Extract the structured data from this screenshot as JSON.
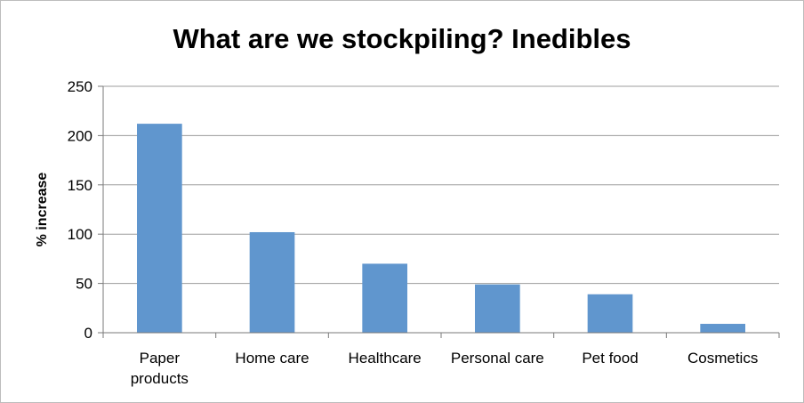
{
  "chart_data": {
    "type": "bar",
    "title": "What are we stockpiling? Inedibles",
    "xlabel": "",
    "ylabel": "% increase",
    "categories": [
      [
        "Paper",
        "products"
      ],
      [
        "Home care"
      ],
      [
        "Healthcare"
      ],
      [
        "Personal care"
      ],
      [
        "Pet food"
      ],
      [
        "Cosmetics"
      ]
    ],
    "values": [
      212,
      102,
      70,
      49,
      39,
      9
    ],
    "ylim": [
      0,
      250
    ],
    "yticks": [
      0,
      50,
      100,
      150,
      200,
      250
    ],
    "grid": true,
    "legend": "none",
    "colors": {
      "bar": "#6096CE",
      "grid": "#9c9c9c",
      "axis": "#7a7a7a"
    }
  }
}
